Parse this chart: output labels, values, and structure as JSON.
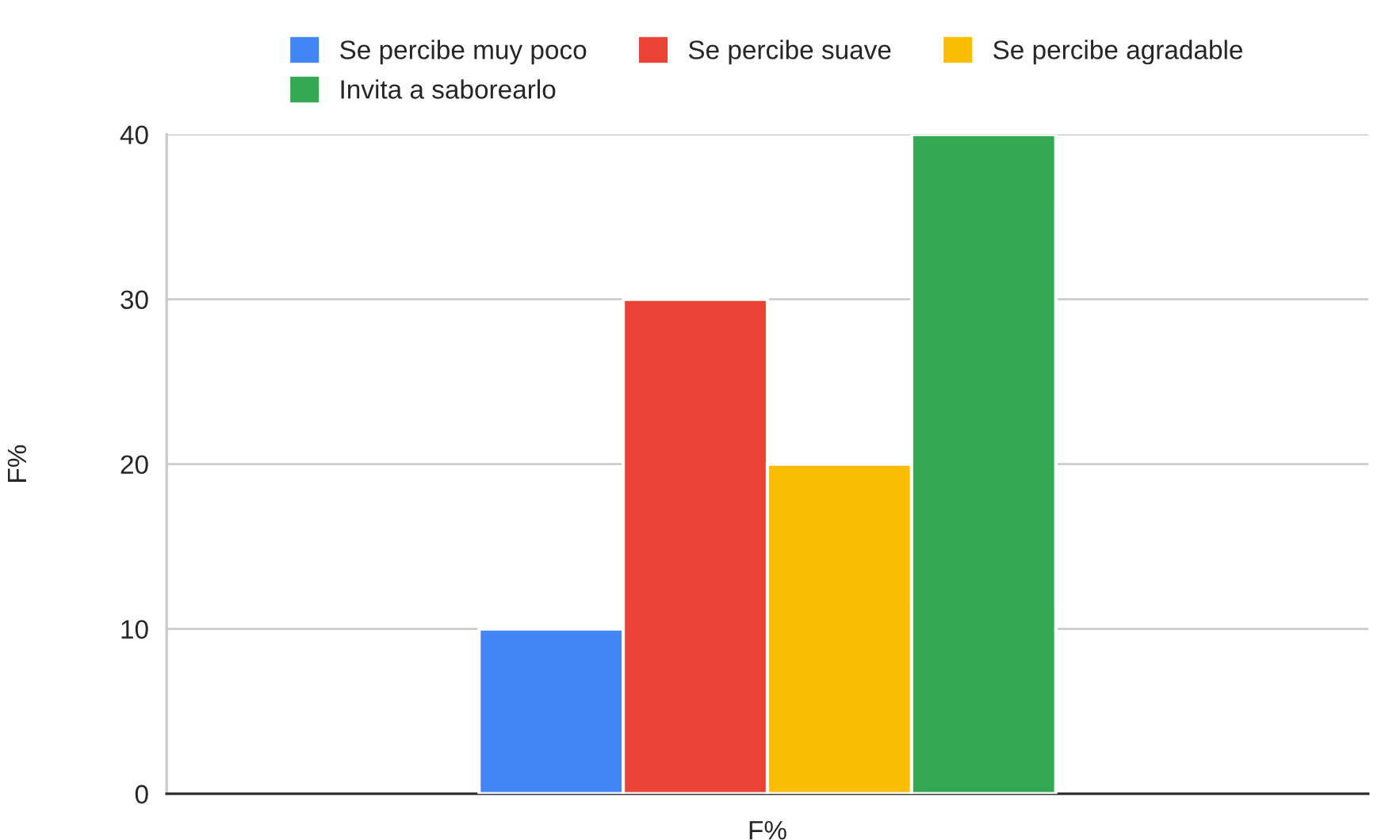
{
  "chart_data": {
    "type": "bar",
    "categories": [
      null
    ],
    "xlabel": "F%",
    "ylabel": "F%",
    "series": [
      {
        "name": "Se percibe muy poco",
        "color": "#4285f4",
        "values": [
          10
        ]
      },
      {
        "name": "Se percibe suave",
        "color": "#ea4335",
        "values": [
          30
        ]
      },
      {
        "name": "Se percibe agradable",
        "color": "#fbbc04",
        "values": [
          20
        ]
      },
      {
        "name": "Invita a saborearlo",
        "color": "#34a853",
        "values": [
          40
        ]
      }
    ],
    "ylim": [
      0,
      40
    ],
    "yticks": [
      0,
      10,
      20,
      30,
      40
    ],
    "grid": "y",
    "legend": "top"
  }
}
